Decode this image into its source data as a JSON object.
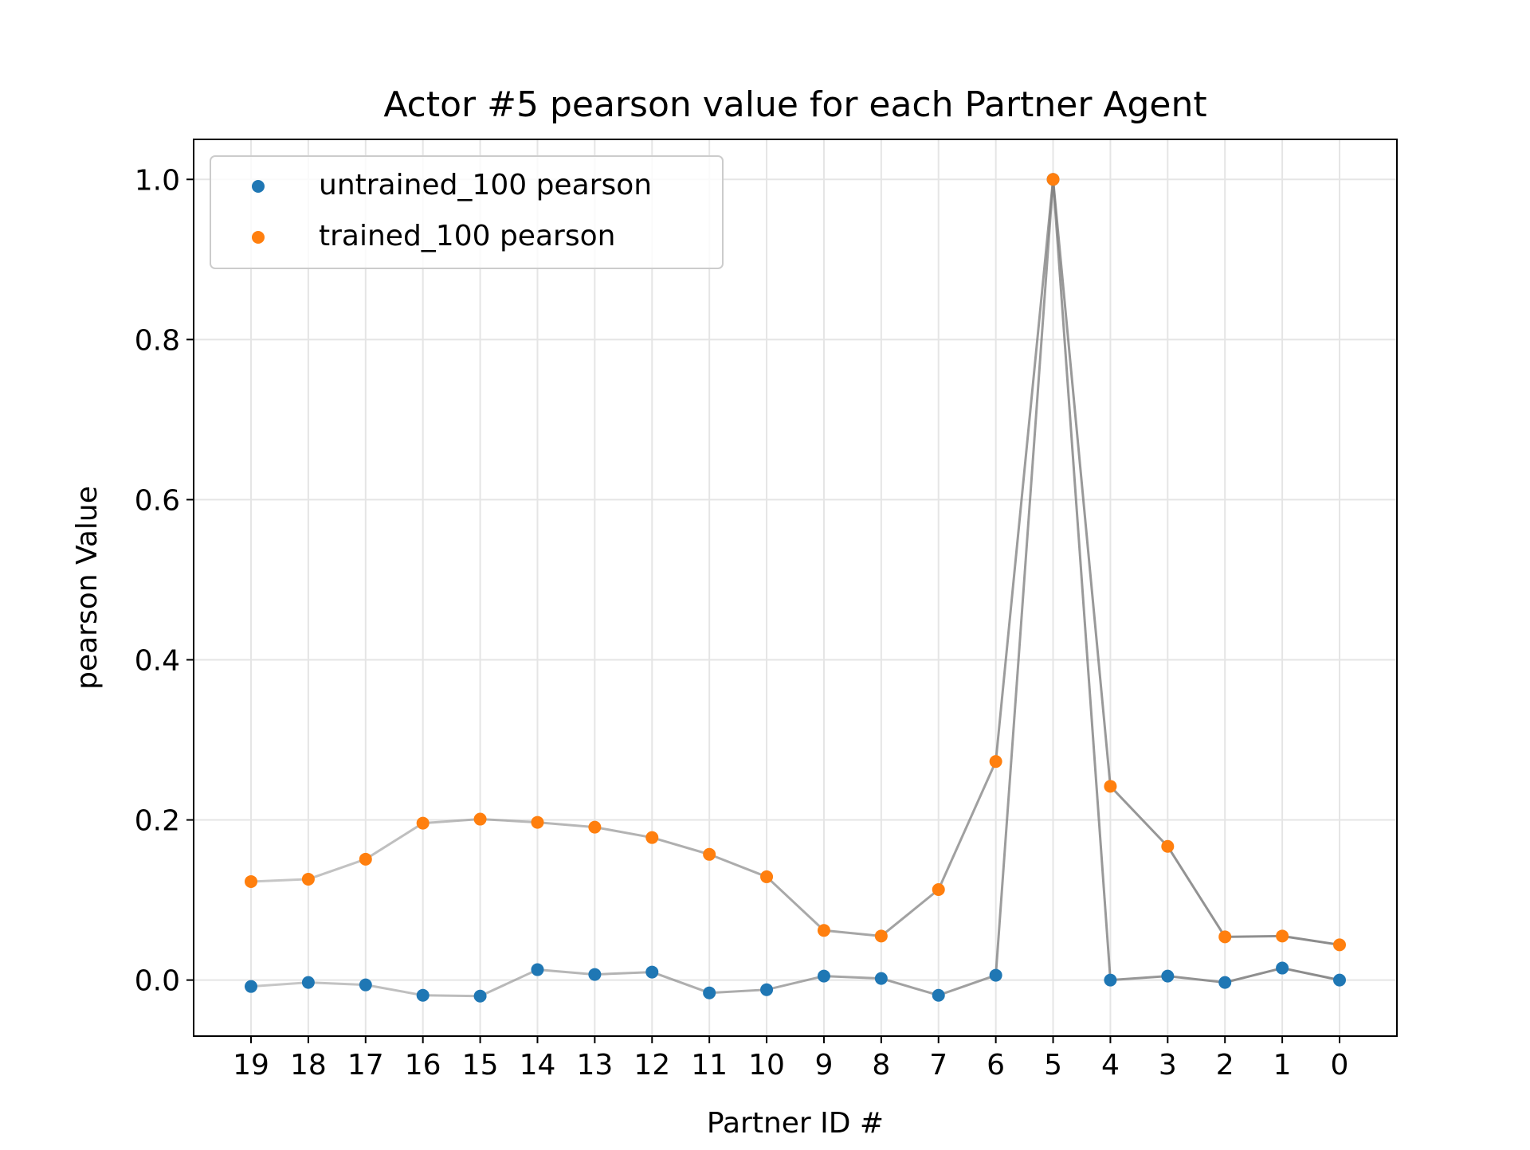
{
  "chart_data": {
    "type": "scatter",
    "title": "Actor #5 pearson value for each Partner Agent",
    "xlabel": "Partner ID #",
    "ylabel": "pearson Value",
    "categories": [
      "19",
      "18",
      "17",
      "16",
      "15",
      "14",
      "13",
      "12",
      "11",
      "10",
      "9",
      "8",
      "7",
      "6",
      "5",
      "4",
      "3",
      "2",
      "1",
      "0"
    ],
    "ylim": [
      -0.07,
      1.05
    ],
    "yticks": [
      "0.0",
      "0.2",
      "0.4",
      "0.6",
      "0.8",
      "1.0"
    ],
    "grid": true,
    "legend_position": "top-left",
    "series": [
      {
        "name": "untrained_100 pearson",
        "color": "#1f77b4",
        "values": [
          -0.008,
          -0.003,
          -0.006,
          -0.019,
          -0.02,
          0.013,
          0.007,
          0.01,
          -0.016,
          -0.012,
          0.005,
          0.002,
          -0.019,
          0.006,
          1.0,
          0.0,
          0.005,
          -0.003,
          0.015,
          0.0
        ]
      },
      {
        "name": "trained_100 pearson",
        "color": "#ff7f0e",
        "values": [
          0.123,
          0.126,
          0.151,
          0.196,
          0.201,
          0.197,
          0.191,
          0.178,
          0.157,
          0.129,
          0.062,
          0.055,
          0.113,
          0.273,
          1.0,
          0.242,
          0.167,
          0.054,
          0.055,
          0.044
        ]
      }
    ],
    "connector_color": "#808080"
  }
}
